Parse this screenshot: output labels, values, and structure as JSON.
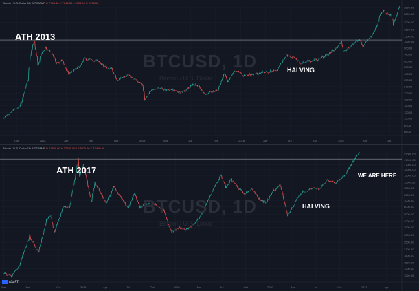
{
  "chart_data": [
    {
      "type": "line",
      "header": "Bitcoin / U.S. Dollar 1D BITSTAMP",
      "watermark": "BTCUSD, 1D",
      "watermark_sub": "Bitcoin / U.S. Dollar",
      "x_ticks": [
        "Oct",
        "2014",
        "Apr",
        "Jul",
        "Oct",
        "2015",
        "Apr",
        "Jul",
        "Oct",
        "2016",
        "Apr",
        "Jul",
        "Oct",
        "2017",
        "Apr",
        "Jul"
      ],
      "y_ticks": [
        3200,
        2600,
        2000,
        1600,
        1300,
        1100,
        900,
        740,
        600,
        500,
        400,
        330,
        270,
        220,
        180,
        150,
        120,
        100,
        80,
        66
      ],
      "y_scale": "log",
      "ylim": [
        60,
        3400
      ],
      "annotations": [
        "ATH 2013",
        "HALVING"
      ],
      "ath_level": 1160,
      "series": [
        {
          "values": [
            [
              "2013-08",
              100
            ],
            [
              "2013-09",
              125
            ],
            [
              "2013-10",
              150
            ],
            [
              "2013-11-10",
              330
            ],
            [
              "2013-11-20",
              700
            ],
            [
              "2013-12-04",
              1150
            ],
            [
              "2013-12-18",
              520
            ],
            [
              "2013-12-31",
              750
            ],
            [
              "2014-01-15",
              900
            ],
            [
              "2014-02-05",
              800
            ],
            [
              "2014-02-25",
              550
            ],
            [
              "2014-03-15",
              620
            ],
            [
              "2014-04-10",
              400
            ],
            [
              "2014-04-30",
              460
            ],
            [
              "2014-05-20",
              500
            ],
            [
              "2014-06-05",
              650
            ],
            [
              "2014-07-01",
              620
            ],
            [
              "2014-08-01",
              590
            ],
            [
              "2014-08-20",
              500
            ],
            [
              "2014-09-15",
              470
            ],
            [
              "2014-10-05",
              330
            ],
            [
              "2014-10-25",
              360
            ],
            [
              "2014-11-15",
              380
            ],
            [
              "2014-12-15",
              330
            ],
            [
              "2015-01-05",
              290
            ],
            [
              "2015-01-14",
              175
            ],
            [
              "2015-02-01",
              230
            ],
            [
              "2015-03-01",
              260
            ],
            [
              "2015-04-01",
              245
            ],
            [
              "2015-05-01",
              235
            ],
            [
              "2015-06-01",
              225
            ],
            [
              "2015-07-10",
              290
            ],
            [
              "2015-08-01",
              280
            ],
            [
              "2015-08-24",
              205
            ],
            [
              "2015-09-15",
              230
            ],
            [
              "2015-10-10",
              245
            ],
            [
              "2015-11-04",
              420
            ],
            [
              "2015-11-15",
              320
            ],
            [
              "2015-12-15",
              450
            ],
            [
              "2016-01-15",
              380
            ],
            [
              "2016-02-15",
              400
            ],
            [
              "2016-03-15",
              415
            ],
            [
              "2016-04-15",
              430
            ],
            [
              "2016-05-15",
              455
            ],
            [
              "2016-06-17",
              740
            ],
            [
              "2016-07-01",
              670
            ],
            [
              "2016-07-20",
              660
            ],
            [
              "2016-08-05",
              560
            ],
            [
              "2016-09-15",
              605
            ],
            [
              "2016-10-15",
              640
            ],
            [
              "2016-11-15",
              740
            ],
            [
              "2016-12-20",
              900
            ],
            [
              "2017-01-04",
              1120
            ],
            [
              "2017-01-12",
              800
            ],
            [
              "2017-02-15",
              1000
            ],
            [
              "2017-03-10",
              1200
            ],
            [
              "2017-03-25",
              950
            ],
            [
              "2017-04-25",
              1300
            ],
            [
              "2017-05-15",
              1800
            ],
            [
              "2017-05-25",
              2400
            ],
            [
              "2017-06-10",
              2900
            ],
            [
              "2017-06-20",
              2600
            ],
            [
              "2017-07-05",
              2550
            ],
            [
              "2017-07-15",
              1900
            ],
            [
              "2017-07-30",
              2750
            ],
            [
              "2017-08-06",
              3200
            ]
          ]
        }
      ]
    },
    {
      "type": "line",
      "header": "Bitcoin / U.S. Dollar 1D BITSTAMP",
      "watermark": "BTCUSD, 1D",
      "watermark_sub": "Bitcoin / U.S. Dollar",
      "x_ticks": [
        "Mar",
        "Jun",
        "Oct",
        "2018",
        "Apr",
        "Jul",
        "Oct",
        "2019",
        "Apr",
        "Jul",
        "Oct",
        "2020",
        "Apr",
        "Jul",
        "Oct",
        "2021",
        "Apr"
      ],
      "y_ticks": [
        22000,
        19000,
        17000,
        15000,
        13000,
        11000,
        9500,
        8000,
        7000,
        6000,
        5000,
        4200,
        3600,
        3000,
        2500,
        2100,
        1800,
        1500,
        1300,
        1100
      ],
      "y_scale": "log",
      "ylim": [
        950,
        24000
      ],
      "annotations": [
        "ATH 2017",
        "HALVING",
        "WE ARE HERE"
      ],
      "ath_level": 19500,
      "last_price_label": "43497",
      "series": [
        {
          "values": [
            [
              "2017-03-01",
              1150
            ],
            [
              "2017-04-01",
              1080
            ],
            [
              "2017-05-01",
              1400
            ],
            [
              "2017-06-10",
              2900
            ],
            [
              "2017-07-15",
              1950
            ],
            [
              "2017-08-15",
              4300
            ],
            [
              "2017-09-01",
              4800
            ],
            [
              "2017-09-15",
              3200
            ],
            [
              "2017-10-20",
              6000
            ],
            [
              "2017-11-12",
              5800
            ],
            [
              "2017-11-28",
              10000
            ],
            [
              "2017-12-17",
              19500
            ],
            [
              "2017-12-22",
              13000
            ],
            [
              "2018-01-06",
              17000
            ],
            [
              "2018-02-06",
              6900
            ],
            [
              "2018-02-20",
              11000
            ],
            [
              "2018-04-06",
              6600
            ],
            [
              "2018-05-05",
              9800
            ],
            [
              "2018-06-29",
              5800
            ],
            [
              "2018-07-25",
              8300
            ],
            [
              "2018-08-14",
              6000
            ],
            [
              "2018-09-15",
              6500
            ],
            [
              "2018-10-15",
              6400
            ],
            [
              "2018-11-15",
              5500
            ],
            [
              "2018-12-15",
              3200
            ],
            [
              "2019-01-15",
              3600
            ],
            [
              "2019-02-08",
              3400
            ],
            [
              "2019-03-15",
              3900
            ],
            [
              "2019-04-15",
              5100
            ],
            [
              "2019-05-15",
              7900
            ],
            [
              "2019-06-26",
              13000
            ],
            [
              "2019-07-15",
              9800
            ],
            [
              "2019-08-05",
              11800
            ],
            [
              "2019-09-25",
              8300
            ],
            [
              "2019-10-26",
              9400
            ],
            [
              "2019-11-20",
              7300
            ],
            [
              "2019-12-18",
              6600
            ],
            [
              "2020-01-15",
              8700
            ],
            [
              "2020-02-13",
              10300
            ],
            [
              "2020-03-12",
              4800
            ],
            [
              "2020-04-15",
              7000
            ],
            [
              "2020-05-11",
              8700
            ],
            [
              "2020-06-15",
              9400
            ],
            [
              "2020-07-15",
              9200
            ],
            [
              "2020-08-15",
              11800
            ],
            [
              "2020-09-15",
              10800
            ],
            [
              "2020-10-21",
              12900
            ],
            [
              "2020-11-05",
              15500
            ],
            [
              "2020-11-25",
              18800
            ],
            [
              "2020-12-17",
              22800
            ]
          ]
        }
      ]
    }
  ]
}
